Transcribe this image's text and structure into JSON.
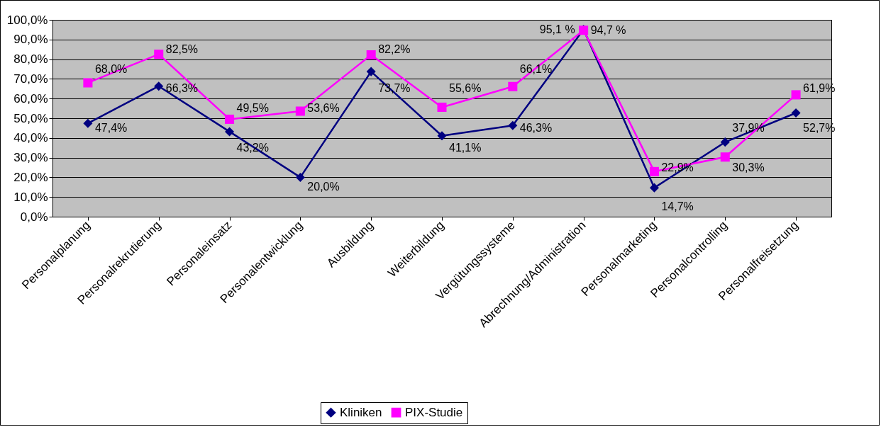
{
  "chart_data": {
    "type": "line",
    "categories": [
      "Personalplanung",
      "Personalrekrutierung",
      "Personaleinsatz",
      "Personalentwicklung",
      "Ausbildung",
      "Weiterbildung",
      "Vergütungssysteme",
      "Abrechnung/Administration",
      "Personalmarketing",
      "Personalcontrolling",
      "Personalfreisetzung"
    ],
    "series": [
      {
        "name": "Kliniken",
        "color": "#000080",
        "marker": "diamond",
        "values": [
          47.4,
          66.3,
          43.2,
          20.0,
          73.7,
          41.1,
          46.3,
          95.1,
          14.7,
          37.9,
          52.7
        ],
        "value_labels": [
          "47,4%",
          "66,3%",
          "43,2%",
          "20,0%",
          "73,7%",
          "41,1%",
          "46,3%",
          "95,1 %",
          "14,7%",
          "37,9%",
          "52,7%"
        ]
      },
      {
        "name": "PIX-Studie",
        "color": "#ff00ff",
        "marker": "square",
        "values": [
          68.0,
          82.5,
          49.5,
          53.6,
          82.2,
          55.6,
          66.1,
          94.7,
          22.9,
          30.3,
          61.9
        ],
        "value_labels": [
          "68,0%",
          "82,5%",
          "49,5%",
          "53,6%",
          "82,2%",
          "55,6%",
          "66,1%",
          "94,7 %",
          "22,9%",
          "30,3%",
          "61,9%"
        ]
      }
    ],
    "ylim": [
      0,
      100
    ],
    "yticks": [
      {
        "value": 0,
        "label": "0,0%"
      },
      {
        "value": 10,
        "label": "10,0%"
      },
      {
        "value": 20,
        "label": "20,0%"
      },
      {
        "value": 30,
        "label": "30,0%"
      },
      {
        "value": 40,
        "label": "40,0%"
      },
      {
        "value": 50,
        "label": "50,0%"
      },
      {
        "value": 60,
        "label": "60,0%"
      },
      {
        "value": 70,
        "label": "70,0%"
      },
      {
        "value": 80,
        "label": "80,0%"
      },
      {
        "value": 90,
        "label": "90,0%"
      },
      {
        "value": 100,
        "label": "100,0%"
      }
    ],
    "grid": "y",
    "legend": "bottom"
  }
}
